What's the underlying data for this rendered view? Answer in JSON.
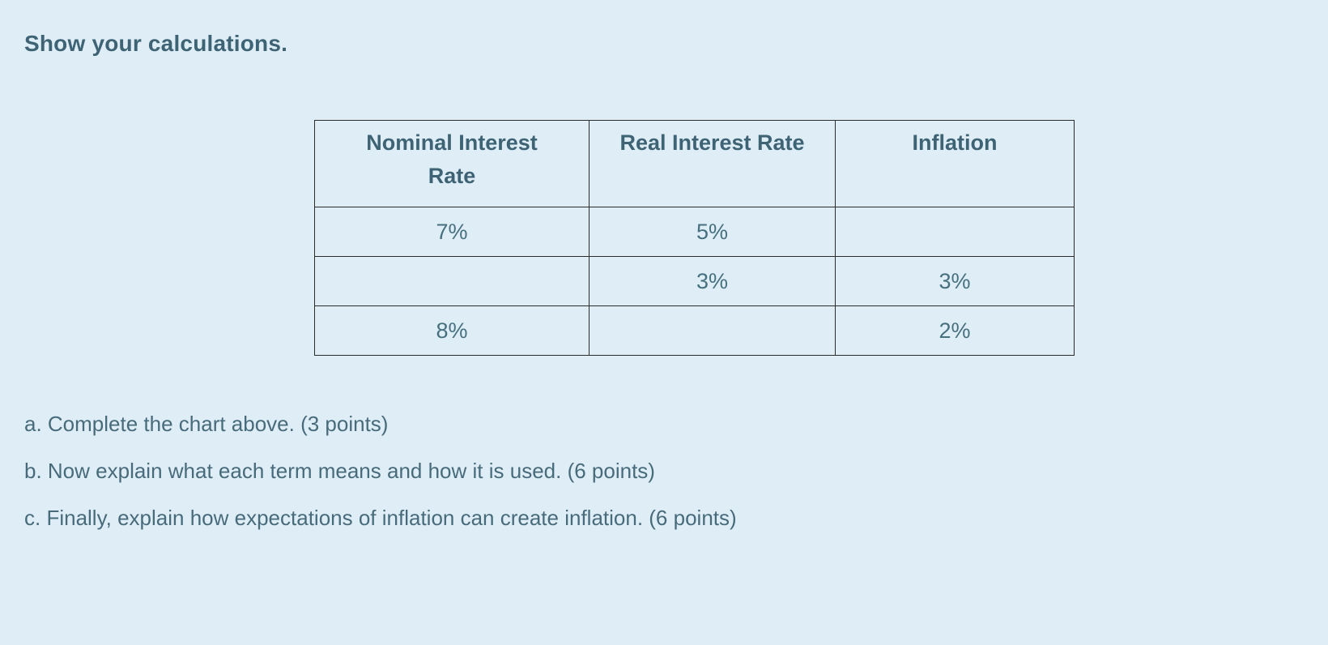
{
  "colors": {
    "page_background": "#dfeef6",
    "heading_text": "#3e6375",
    "table_text": "#47707f",
    "body_text": "#486b7b",
    "table_border": "#2c2c2c"
  },
  "heading": {
    "title": "Show your calculations."
  },
  "table": {
    "columns": [
      "Nominal Interest Rate",
      "Real Interest Rate",
      "Inflation"
    ],
    "rows": [
      [
        "7%",
        "5%",
        ""
      ],
      [
        "",
        "3%",
        "3%"
      ],
      [
        "8%",
        "",
        "2%"
      ]
    ]
  },
  "questions": [
    "a. Complete the chart above. (3 points)",
    "b. Now explain what each term means and how it is used. (6 points)",
    "c. Finally, explain how expectations of inflation can create inflation. (6 points)"
  ]
}
